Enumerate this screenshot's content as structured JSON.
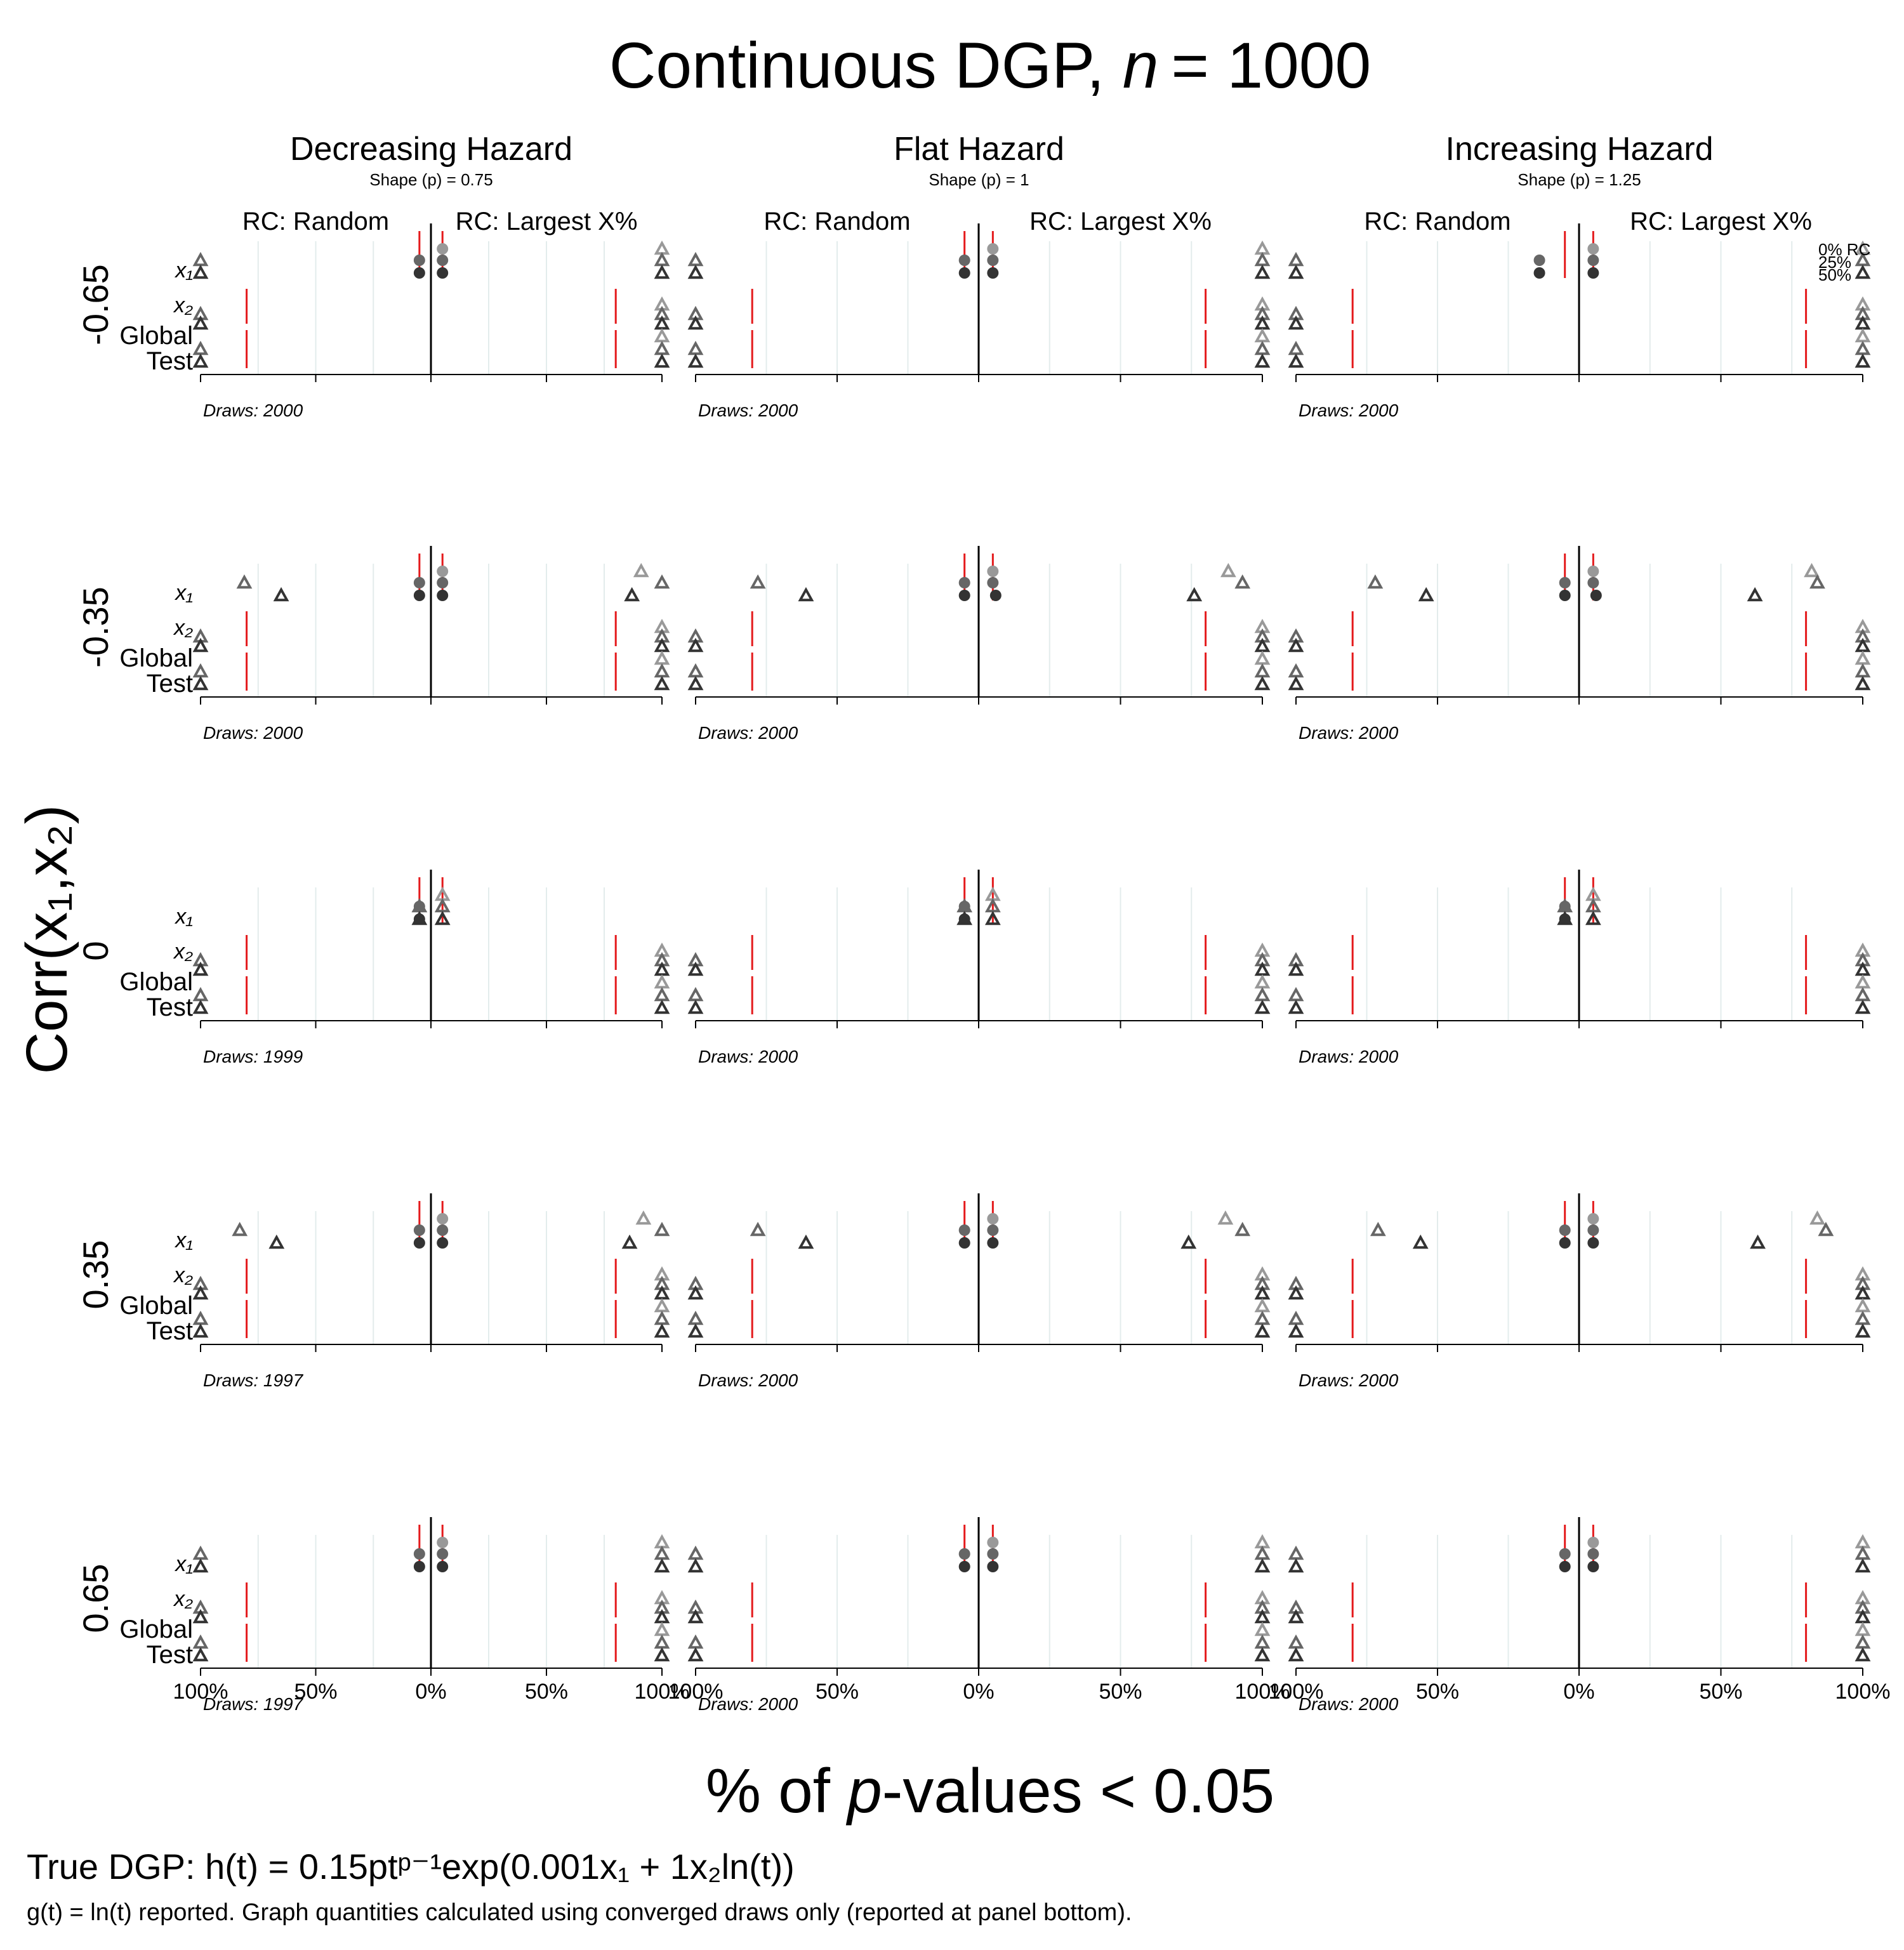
{
  "chart_data": {
    "type": "scatter",
    "title_prefix": "Continuous DGP, ",
    "title_n_symbol": "n",
    "title_n_value": "= 1000",
    "y_axis_title": "Corr(x₁,x₂)",
    "x_axis_title_prefix": "% of ",
    "x_axis_title_p": "p",
    "x_axis_title_suffix": "-values < 0.05",
    "footnote_dgp": "True DGP: h(t) = 0.15ptᵖ⁻¹exp(0.001x₁ + 1x₂ln(t))",
    "footnote_note": "g(t) = ln(t) reported.  Graph quantities calculated using converged draws only (reported at panel bottom).",
    "rc_left_label": "RC: Random",
    "rc_right_label": "RC: Largest X%",
    "tick_labels": [
      "100%",
      "50%",
      "0%",
      "50%",
      "100%"
    ],
    "legend": [
      "0% RC",
      "25%",
      "50%"
    ],
    "row_labels": [
      "x₁",
      "x₂",
      "Global",
      "Test"
    ],
    "level_colors": [
      "#999999",
      "#666666",
      "#333333"
    ],
    "red_line_color": "#e41a1c",
    "columns": [
      {
        "title": "Decreasing Hazard",
        "subtitle": "Shape (p) = 0.75"
      },
      {
        "title": "Flat Hazard",
        "subtitle": "Shape (p) = 1"
      },
      {
        "title": "Increasing Hazard",
        "subtitle": "Shape (p) = 1.25"
      }
    ],
    "corr_values": [
      "-0.65",
      "-0.35",
      "0",
      "0.35",
      "0.65"
    ],
    "draws": [
      [
        "Draws: 2000",
        "Draws: 2000",
        "Draws: 2000"
      ],
      [
        "Draws: 2000",
        "Draws: 2000",
        "Draws: 2000"
      ],
      [
        "Draws: 1999",
        "Draws: 2000",
        "Draws: 2000"
      ],
      [
        "Draws: 1997",
        "Draws: 2000",
        "Draws: 2000"
      ],
      [
        "Draws: 1997",
        "Draws: 2000",
        "Draws: 2000"
      ]
    ],
    "nominal_rate": 5,
    "reference_power": [
      [
        80,
        80,
        80
      ],
      [
        80,
        80,
        80
      ],
      [
        80,
        80,
        80
      ],
      [
        80,
        80,
        80
      ],
      [
        80,
        80,
        80
      ]
    ],
    "x1_random_pct": [
      [
        [
          100,
          100,
          100
        ],
        [
          100,
          100,
          100
        ],
        [
          100,
          100,
          100
        ]
      ],
      [
        [
          100,
          81,
          65
        ],
        [
          100,
          78,
          61
        ],
        [
          100,
          72,
          54
        ]
      ],
      [
        [
          5,
          5,
          5
        ],
        [
          6,
          6,
          5
        ],
        [
          6,
          6,
          6
        ]
      ],
      [
        [
          100,
          83,
          67
        ],
        [
          100,
          78,
          61
        ],
        [
          100,
          71,
          56
        ]
      ],
      [
        [
          100,
          100,
          100
        ],
        [
          100,
          100,
          100
        ],
        [
          100,
          100,
          100
        ]
      ]
    ],
    "x1_random_pct_markers": [
      [
        "triangle",
        "triangle",
        "triangle"
      ],
      [
        "triangle",
        "triangle",
        "triangle"
      ],
      [
        "triangle",
        "triangle",
        "triangle"
      ],
      [
        "triangle",
        "triangle",
        "triangle"
      ],
      [
        "triangle",
        "triangle",
        "triangle"
      ]
    ],
    "x1_null_random": [
      [
        5,
        5,
        5
      ],
      [
        5,
        5,
        5
      ],
      [
        5,
        5,
        5
      ],
      [
        5,
        5,
        5
      ],
      [
        5,
        5,
        5
      ]
    ],
    "x1_largest_pct": [
      [
        [
          100,
          100,
          100
        ],
        [
          100,
          100,
          100
        ],
        [
          100,
          100,
          100
        ]
      ],
      [
        [
          91,
          100,
          87
        ],
        [
          88,
          93,
          76
        ],
        [
          82,
          84,
          62
        ]
      ],
      [
        [
          5,
          5,
          5
        ],
        [
          6,
          5,
          5
        ],
        [
          5,
          5,
          6
        ]
      ],
      [
        [
          92,
          100,
          86
        ],
        [
          87,
          93,
          74
        ],
        [
          84,
          87,
          63
        ]
      ],
      [
        [
          100,
          100,
          100
        ],
        [
          100,
          100,
          100
        ],
        [
          100,
          100,
          100
        ]
      ]
    ],
    "x2_random_pct": [
      [
        100,
        100,
        100
      ],
      [
        100,
        100,
        100
      ],
      [
        100,
        100,
        100
      ],
      [
        100,
        100,
        100
      ],
      [
        100,
        100,
        100
      ]
    ],
    "x2_largest_pct": [
      [
        100,
        100,
        100
      ],
      [
        100,
        100,
        100
      ],
      [
        100,
        100,
        100
      ],
      [
        100,
        100,
        100
      ],
      [
        100,
        100,
        100
      ]
    ],
    "x1_point_random": [
      [
        [
          5,
          5,
          5
        ],
        [
          5,
          5,
          5
        ],
        [
          14,
          14,
          14
        ]
      ],
      [
        [
          5,
          5,
          5
        ],
        [
          7,
          5,
          5
        ],
        [
          5,
          5,
          5
        ]
      ],
      [
        [
          5,
          5,
          5
        ],
        [
          6,
          5,
          5
        ],
        [
          5,
          5,
          5
        ]
      ],
      [
        [
          5,
          5,
          5
        ],
        [
          5,
          5,
          5
        ],
        [
          5,
          5,
          5
        ]
      ],
      [
        [
          5,
          5,
          5
        ],
        [
          5,
          5,
          5
        ],
        [
          5,
          5,
          5
        ]
      ]
    ],
    "x1_point_largest": [
      [
        [
          5,
          5,
          5
        ],
        [
          5,
          5,
          5
        ],
        [
          5,
          5,
          5
        ]
      ],
      [
        [
          5,
          5,
          5
        ],
        [
          5,
          5,
          6
        ],
        [
          5,
          5,
          6
        ]
      ],
      [
        [
          5,
          5,
          5
        ],
        [
          5,
          5,
          5
        ],
        [
          5,
          5,
          5
        ]
      ],
      [
        [
          5,
          5,
          5
        ],
        [
          5,
          5,
          5
        ],
        [
          5,
          5,
          5
        ]
      ],
      [
        [
          5,
          5,
          5
        ],
        [
          5,
          5,
          5
        ],
        [
          5,
          5,
          5
        ]
      ]
    ],
    "x1_upper_is_point": [
      [
        true,
        true,
        true
      ],
      [
        true,
        true,
        true
      ],
      [
        false,
        false,
        false
      ],
      [
        true,
        true,
        true
      ],
      [
        true,
        true,
        true
      ]
    ],
    "x1_lower_triangles": [
      [
        true,
        true,
        true
      ],
      [
        true,
        true,
        true
      ],
      [
        false,
        false,
        false
      ],
      [
        true,
        true,
        true
      ],
      [
        true,
        true,
        true
      ]
    ]
  }
}
